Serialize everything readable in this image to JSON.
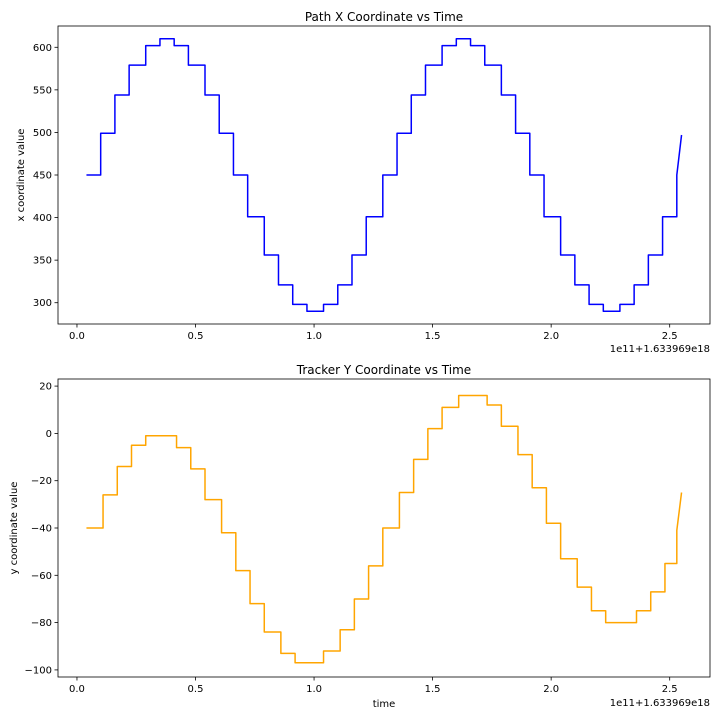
{
  "chart_data": [
    {
      "type": "line",
      "title": "Path X Coordinate vs Time",
      "xlabel": "",
      "ylabel": "x coordinate value",
      "x_offset_label": "1e11+1.633969e18",
      "xlim": [
        -0.08,
        2.67
      ],
      "ylim": [
        275,
        625
      ],
      "xticks": [
        0.0,
        0.5,
        1.0,
        1.5,
        2.0,
        2.5
      ],
      "xtick_labels": [
        "0.0",
        "0.5",
        "1.0",
        "1.5",
        "2.0",
        "2.5"
      ],
      "yticks": [
        300,
        350,
        400,
        450,
        500,
        550,
        600
      ],
      "ytick_labels": [
        "300",
        "350",
        "400",
        "450",
        "500",
        "550",
        "600"
      ],
      "grid": false,
      "color": "#0000ff",
      "x": [
        0.04,
        0.1,
        0.1,
        0.16,
        0.16,
        0.22,
        0.22,
        0.29,
        0.29,
        0.35,
        0.35,
        0.41,
        0.41,
        0.47,
        0.47,
        0.54,
        0.54,
        0.6,
        0.6,
        0.66,
        0.66,
        0.72,
        0.72,
        0.79,
        0.79,
        0.85,
        0.85,
        0.91,
        0.91,
        0.97,
        0.97,
        1.04,
        1.04,
        1.1,
        1.1,
        1.16,
        1.16,
        1.22,
        1.22,
        1.29,
        1.29,
        1.35,
        1.35,
        1.41,
        1.41,
        1.47,
        1.47,
        1.54,
        1.54,
        1.6,
        1.6,
        1.66,
        1.66,
        1.72,
        1.72,
        1.79,
        1.79,
        1.85,
        1.85,
        1.91,
        1.91,
        1.97,
        1.97,
        2.04,
        2.04,
        2.1,
        2.1,
        2.16,
        2.16,
        2.22,
        2.22,
        2.29,
        2.29,
        2.35,
        2.35,
        2.41,
        2.41,
        2.47,
        2.47,
        2.53,
        2.53,
        2.55
      ],
      "y": [
        450,
        450,
        499,
        499,
        544,
        544,
        579,
        579,
        602,
        602,
        610,
        610,
        602,
        602,
        579,
        579,
        544,
        544,
        499,
        499,
        450,
        450,
        401,
        401,
        356,
        356,
        321,
        321,
        298,
        298,
        290,
        290,
        298,
        298,
        321,
        321,
        356,
        356,
        401,
        401,
        450,
        450,
        499,
        499,
        544,
        544,
        579,
        579,
        602,
        602,
        610,
        610,
        602,
        602,
        579,
        579,
        544,
        544,
        499,
        499,
        450,
        450,
        401,
        401,
        356,
        356,
        321,
        321,
        298,
        298,
        290,
        290,
        298,
        298,
        321,
        321,
        356,
        356,
        401,
        401,
        450,
        497
      ]
    },
    {
      "type": "line",
      "title": "Tracker Y Coordinate vs Time",
      "xlabel": "time",
      "ylabel": "y coordinate value",
      "x_offset_label": "1e11+1.633969e18",
      "xlim": [
        -0.08,
        2.67
      ],
      "ylim": [
        -103,
        23
      ],
      "xticks": [
        0.0,
        0.5,
        1.0,
        1.5,
        2.0,
        2.5
      ],
      "xtick_labels": [
        "0.0",
        "0.5",
        "1.0",
        "1.5",
        "2.0",
        "2.5"
      ],
      "yticks": [
        -100,
        -80,
        -60,
        -40,
        -20,
        0,
        20
      ],
      "ytick_labels": [
        "−100",
        "−80",
        "−60",
        "−40",
        "−20",
        "0",
        "20"
      ],
      "grid": false,
      "color": "#ffa500",
      "x": [
        0.04,
        0.11,
        0.11,
        0.17,
        0.17,
        0.23,
        0.23,
        0.29,
        0.29,
        0.36,
        0.36,
        0.42,
        0.42,
        0.48,
        0.48,
        0.54,
        0.54,
        0.61,
        0.61,
        0.67,
        0.67,
        0.73,
        0.73,
        0.79,
        0.79,
        0.86,
        0.86,
        0.92,
        0.92,
        0.98,
        0.98,
        1.04,
        1.04,
        1.11,
        1.11,
        1.17,
        1.17,
        1.23,
        1.23,
        1.29,
        1.29,
        1.36,
        1.36,
        1.42,
        1.42,
        1.48,
        1.48,
        1.54,
        1.54,
        1.61,
        1.61,
        1.67,
        1.67,
        1.73,
        1.73,
        1.79,
        1.79,
        1.86,
        1.86,
        1.92,
        1.92,
        1.98,
        1.98,
        2.04,
        2.04,
        2.11,
        2.11,
        2.17,
        2.17,
        2.23,
        2.23,
        2.29,
        2.29,
        2.36,
        2.36,
        2.42,
        2.42,
        2.48,
        2.48,
        2.53,
        2.53,
        2.55
      ],
      "y": [
        -40,
        -40,
        -26,
        -26,
        -14,
        -14,
        -5,
        -5,
        -1,
        -1,
        -1,
        -1,
        -6,
        -6,
        -15,
        -15,
        -28,
        -28,
        -42,
        -42,
        -58,
        -58,
        -72,
        -72,
        -84,
        -84,
        -93,
        -93,
        -97,
        -97,
        -97,
        -97,
        -92,
        -92,
        -83,
        -83,
        -70,
        -70,
        -56,
        -56,
        -40,
        -40,
        -25,
        -25,
        -11,
        -11,
        2,
        2,
        11,
        11,
        16,
        16,
        16,
        16,
        12,
        12,
        3,
        3,
        -9,
        -9,
        -23,
        -23,
        -38,
        -38,
        -53,
        -53,
        -65,
        -65,
        -75,
        -75,
        -80,
        -80,
        -80,
        -80,
        -75,
        -75,
        -67,
        -67,
        -55,
        -55,
        -41,
        -25
      ]
    }
  ]
}
